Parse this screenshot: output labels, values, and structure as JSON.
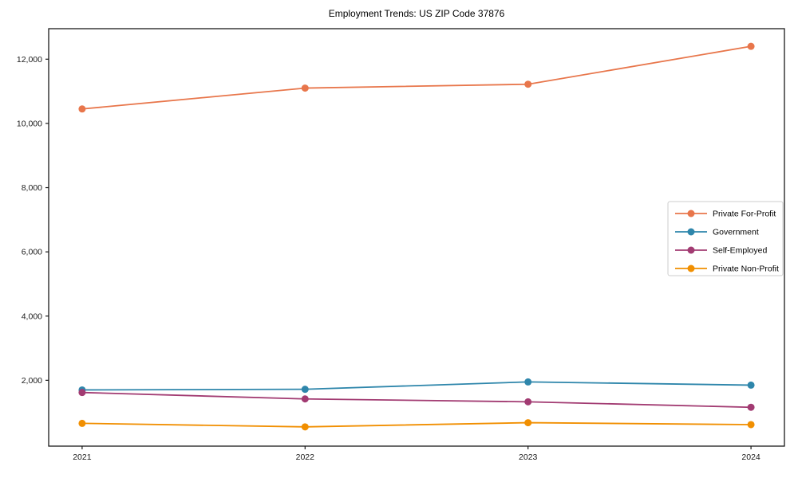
{
  "chart_data": {
    "type": "line",
    "title": "Employment Trends: US ZIP Code 37876",
    "xlabel": "",
    "ylabel": "",
    "x": [
      2021,
      2022,
      2023,
      2024
    ],
    "x_tick_labels": [
      "2021",
      "2022",
      "2023",
      "2024"
    ],
    "y_ticks": [
      2000,
      4000,
      6000,
      8000,
      10000,
      12000
    ],
    "y_tick_labels": [
      "2,000",
      "4,000",
      "6,000",
      "8,000",
      "10,000",
      "12,000"
    ],
    "xlim": [
      2020.85,
      2024.15
    ],
    "ylim": [
      -50,
      12950
    ],
    "grid": false,
    "background_color": "#ffffff",
    "axis_color": "#1a1a1a",
    "legend": {
      "position": "center-right",
      "border_color": "#cccccc",
      "background_color": "#ffffff"
    },
    "series": [
      {
        "name": "Private For-Profit",
        "color": "#E8764B",
        "values": [
          10450,
          11100,
          11220,
          12400
        ]
      },
      {
        "name": "Government",
        "color": "#2E86AB",
        "values": [
          1700,
          1720,
          1950,
          1850
        ]
      },
      {
        "name": "Self-Employed",
        "color": "#A23B72",
        "values": [
          1620,
          1420,
          1330,
          1160
        ]
      },
      {
        "name": "Private Non-Profit",
        "color": "#F18F01",
        "values": [
          660,
          550,
          680,
          620
        ]
      }
    ]
  }
}
